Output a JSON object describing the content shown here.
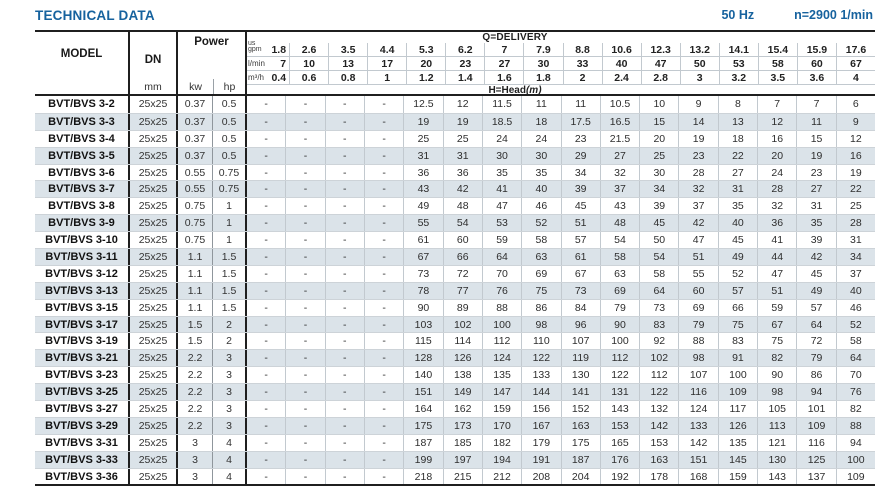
{
  "header": {
    "title": "TECHNICAL DATA",
    "frequency": "50 Hz",
    "speed": "n=2900 1/min"
  },
  "table": {
    "columns": {
      "model": "MODEL",
      "dn": "DN",
      "dn_unit": "mm",
      "power": "Power",
      "power_kw": "kw",
      "power_hp": "hp"
    },
    "delivery": {
      "label": "Q=DELIVERY",
      "head_label": "H=Head",
      "head_unit": "(m)",
      "unit_rows": [
        {
          "unit_top": "us",
          "unit": "gpm",
          "values": [
            "1.8",
            "2.6",
            "3.5",
            "4.4",
            "5.3",
            "6.2",
            "7",
            "7.9",
            "8.8",
            "10.6",
            "12.3",
            "13.2",
            "14.1",
            "15.4",
            "15.9",
            "17.6"
          ]
        },
        {
          "unit": "l/min",
          "values": [
            "7",
            "10",
            "13",
            "17",
            "20",
            "23",
            "27",
            "30",
            "33",
            "40",
            "47",
            "50",
            "53",
            "58",
            "60",
            "67"
          ]
        },
        {
          "unit": "m³/h",
          "values": [
            "0.4",
            "0.6",
            "0.8",
            "1",
            "1.2",
            "1.4",
            "1.6",
            "1.8",
            "2",
            "2.4",
            "2.8",
            "3",
            "3.2",
            "3.5",
            "3.6",
            "4"
          ]
        }
      ]
    },
    "rows": [
      {
        "model": "BVT/BVS 3-2",
        "dn": "25x25",
        "kw": "0.37",
        "hp": "0.5",
        "heads": [
          "-",
          "-",
          "-",
          "-",
          "12.5",
          "12",
          "11.5",
          "11",
          "11",
          "10.5",
          "10",
          "9",
          "8",
          "7",
          "7",
          "6"
        ]
      },
      {
        "model": "BVT/BVS 3-3",
        "dn": "25x25",
        "kw": "0.37",
        "hp": "0.5",
        "heads": [
          "-",
          "-",
          "-",
          "-",
          "19",
          "19",
          "18.5",
          "18",
          "17.5",
          "16.5",
          "15",
          "14",
          "13",
          "12",
          "11",
          "9"
        ]
      },
      {
        "model": "BVT/BVS 3-4",
        "dn": "25x25",
        "kw": "0.37",
        "hp": "0.5",
        "heads": [
          "-",
          "-",
          "-",
          "-",
          "25",
          "25",
          "24",
          "24",
          "23",
          "21.5",
          "20",
          "19",
          "18",
          "16",
          "15",
          "12"
        ]
      },
      {
        "model": "BVT/BVS 3-5",
        "dn": "25x25",
        "kw": "0.37",
        "hp": "0.5",
        "heads": [
          "-",
          "-",
          "-",
          "-",
          "31",
          "31",
          "30",
          "30",
          "29",
          "27",
          "25",
          "23",
          "22",
          "20",
          "19",
          "16"
        ]
      },
      {
        "model": "BVT/BVS 3-6",
        "dn": "25x25",
        "kw": "0.55",
        "hp": "0.75",
        "heads": [
          "-",
          "-",
          "-",
          "-",
          "36",
          "36",
          "35",
          "35",
          "34",
          "32",
          "30",
          "28",
          "27",
          "24",
          "23",
          "19"
        ]
      },
      {
        "model": "BVT/BVS 3-7",
        "dn": "25x25",
        "kw": "0.55",
        "hp": "0.75",
        "heads": [
          "-",
          "-",
          "-",
          "-",
          "43",
          "42",
          "41",
          "40",
          "39",
          "37",
          "34",
          "32",
          "31",
          "28",
          "27",
          "22"
        ]
      },
      {
        "model": "BVT/BVS 3-8",
        "dn": "25x25",
        "kw": "0.75",
        "hp": "1",
        "heads": [
          "-",
          "-",
          "-",
          "-",
          "49",
          "48",
          "47",
          "46",
          "45",
          "43",
          "39",
          "37",
          "35",
          "32",
          "31",
          "25"
        ]
      },
      {
        "model": "BVT/BVS 3-9",
        "dn": "25x25",
        "kw": "0.75",
        "hp": "1",
        "heads": [
          "-",
          "-",
          "-",
          "-",
          "55",
          "54",
          "53",
          "52",
          "51",
          "48",
          "45",
          "42",
          "40",
          "36",
          "35",
          "28"
        ]
      },
      {
        "model": "BVT/BVS 3-10",
        "dn": "25x25",
        "kw": "0.75",
        "hp": "1",
        "heads": [
          "-",
          "-",
          "-",
          "-",
          "61",
          "60",
          "59",
          "58",
          "57",
          "54",
          "50",
          "47",
          "45",
          "41",
          "39",
          "31"
        ]
      },
      {
        "model": "BVT/BVS 3-11",
        "dn": "25x25",
        "kw": "1.1",
        "hp": "1.5",
        "heads": [
          "-",
          "-",
          "-",
          "-",
          "67",
          "66",
          "64",
          "63",
          "61",
          "58",
          "54",
          "51",
          "49",
          "44",
          "42",
          "34"
        ]
      },
      {
        "model": "BVT/BVS 3-12",
        "dn": "25x25",
        "kw": "1.1",
        "hp": "1.5",
        "heads": [
          "-",
          "-",
          "-",
          "-",
          "73",
          "72",
          "70",
          "69",
          "67",
          "63",
          "58",
          "55",
          "52",
          "47",
          "45",
          "37"
        ]
      },
      {
        "model": "BVT/BVS 3-13",
        "dn": "25x25",
        "kw": "1.1",
        "hp": "1.5",
        "heads": [
          "-",
          "-",
          "-",
          "-",
          "78",
          "77",
          "76",
          "75",
          "73",
          "69",
          "64",
          "60",
          "57",
          "51",
          "49",
          "40"
        ]
      },
      {
        "model": "BVT/BVS 3-15",
        "dn": "25x25",
        "kw": "1.1",
        "hp": "1.5",
        "heads": [
          "-",
          "-",
          "-",
          "-",
          "90",
          "89",
          "88",
          "86",
          "84",
          "79",
          "73",
          "69",
          "66",
          "59",
          "57",
          "46"
        ]
      },
      {
        "model": "BVT/BVS 3-17",
        "dn": "25x25",
        "kw": "1.5",
        "hp": "2",
        "heads": [
          "-",
          "-",
          "-",
          "-",
          "103",
          "102",
          "100",
          "98",
          "96",
          "90",
          "83",
          "79",
          "75",
          "67",
          "64",
          "52"
        ]
      },
      {
        "model": "BVT/BVS 3-19",
        "dn": "25x25",
        "kw": "1.5",
        "hp": "2",
        "heads": [
          "-",
          "-",
          "-",
          "-",
          "115",
          "114",
          "112",
          "110",
          "107",
          "100",
          "92",
          "88",
          "83",
          "75",
          "72",
          "58"
        ]
      },
      {
        "model": "BVT/BVS 3-21",
        "dn": "25x25",
        "kw": "2.2",
        "hp": "3",
        "heads": [
          "-",
          "-",
          "-",
          "-",
          "128",
          "126",
          "124",
          "122",
          "119",
          "112",
          "102",
          "98",
          "91",
          "82",
          "79",
          "64"
        ]
      },
      {
        "model": "BVT/BVS 3-23",
        "dn": "25x25",
        "kw": "2.2",
        "hp": "3",
        "heads": [
          "-",
          "-",
          "-",
          "-",
          "140",
          "138",
          "135",
          "133",
          "130",
          "122",
          "112",
          "107",
          "100",
          "90",
          "86",
          "70"
        ]
      },
      {
        "model": "BVT/BVS 3-25",
        "dn": "25x25",
        "kw": "2.2",
        "hp": "3",
        "heads": [
          "-",
          "-",
          "-",
          "-",
          "151",
          "149",
          "147",
          "144",
          "141",
          "131",
          "122",
          "116",
          "109",
          "98",
          "94",
          "76"
        ]
      },
      {
        "model": "BVT/BVS 3-27",
        "dn": "25x25",
        "kw": "2.2",
        "hp": "3",
        "heads": [
          "-",
          "-",
          "-",
          "-",
          "164",
          "162",
          "159",
          "156",
          "152",
          "143",
          "132",
          "124",
          "117",
          "105",
          "101",
          "82"
        ]
      },
      {
        "model": "BVT/BVS 3-29",
        "dn": "25x25",
        "kw": "2.2",
        "hp": "3",
        "heads": [
          "-",
          "-",
          "-",
          "-",
          "175",
          "173",
          "170",
          "167",
          "163",
          "153",
          "142",
          "133",
          "126",
          "113",
          "109",
          "88"
        ]
      },
      {
        "model": "BVT/BVS 3-31",
        "dn": "25x25",
        "kw": "3",
        "hp": "4",
        "heads": [
          "-",
          "-",
          "-",
          "-",
          "187",
          "185",
          "182",
          "179",
          "175",
          "165",
          "153",
          "142",
          "135",
          "121",
          "116",
          "94"
        ]
      },
      {
        "model": "BVT/BVS 3-33",
        "dn": "25x25",
        "kw": "3",
        "hp": "4",
        "heads": [
          "-",
          "-",
          "-",
          "-",
          "199",
          "197",
          "194",
          "191",
          "187",
          "176",
          "163",
          "151",
          "145",
          "130",
          "125",
          "100"
        ]
      },
      {
        "model": "BVT/BVS 3-36",
        "dn": "25x25",
        "kw": "3",
        "hp": "4",
        "heads": [
          "-",
          "-",
          "-",
          "-",
          "218",
          "215",
          "212",
          "208",
          "204",
          "192",
          "178",
          "168",
          "159",
          "143",
          "137",
          "109"
        ]
      }
    ]
  }
}
